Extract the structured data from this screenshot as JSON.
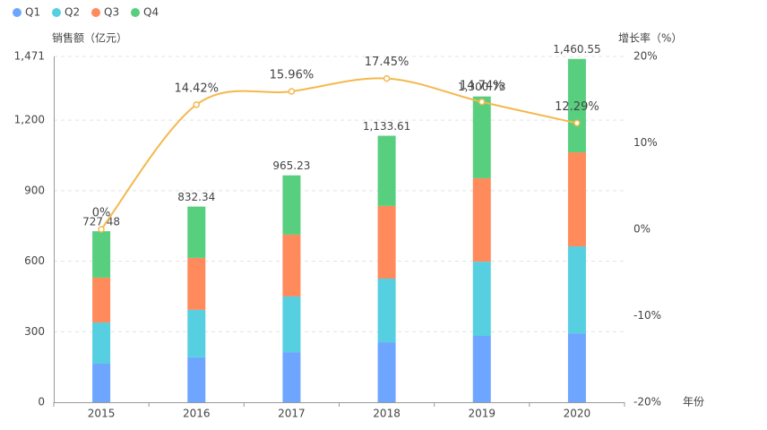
{
  "chart_data": {
    "type": "bar+line",
    "y_axis_title": "销售额（亿元）",
    "y2_axis_title": "增长率（%）",
    "x_axis_title": "年份",
    "categories": [
      "2015",
      "2016",
      "2017",
      "2018",
      "2019",
      "2020"
    ],
    "series": [
      {
        "name": "Q1",
        "color": "#6ea6ff",
        "values": [
          164,
          191,
          213,
          255,
          282,
          293
        ]
      },
      {
        "name": "Q2",
        "color": "#56cfe0",
        "values": [
          175,
          202,
          237,
          271,
          316,
          370
        ]
      },
      {
        "name": "Q3",
        "color": "#ff8a5b",
        "values": [
          191,
          221,
          263,
          309,
          355,
          400
        ]
      },
      {
        "name": "Q4",
        "color": "#58cf7f",
        "values": [
          197.48,
          218.34,
          252.23,
          298.61,
          347.73,
          397.55
        ]
      }
    ],
    "totals": [
      727.48,
      832.34,
      965.23,
      1133.61,
      1300.73,
      1460.55
    ],
    "totals_labels": [
      "727.48",
      "832.34",
      "965.23",
      "1,133.61",
      "1,300.73",
      "1,460.55"
    ],
    "growth": {
      "color": "#f4b84e",
      "axis": "y2",
      "values": [
        0,
        14.42,
        15.96,
        17.45,
        14.74,
        12.29
      ],
      "value_labels": [
        "0%",
        "14.42%",
        "15.96%",
        "17.45%",
        "14.74%",
        "12.29%"
      ]
    },
    "ylim": [
      0,
      1471
    ],
    "yticks": [
      0,
      300,
      600,
      900,
      {
        "value": 1200,
        "label": "1,200"
      },
      {
        "value": 1471,
        "label": "1,471"
      }
    ],
    "y2lim": [
      -20,
      20
    ],
    "y2ticks": [
      {
        "value": -20,
        "label": "-20%"
      },
      {
        "value": -10,
        "label": "-10%"
      },
      {
        "value": 0,
        "label": "0%"
      },
      {
        "value": 10,
        "label": "10%"
      },
      {
        "value": 20,
        "label": "20%"
      }
    ],
    "grid": true
  }
}
